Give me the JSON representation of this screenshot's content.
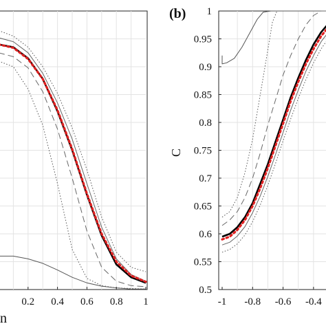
{
  "panels": [
    {
      "panel_label": "",
      "chart_data": {
        "type": "line",
        "xlabel": "n",
        "ylabel": "",
        "xlim": [
          0,
          1
        ],
        "ylim": [
          0.5,
          1
        ],
        "x_ticks": [
          "0.2",
          "0.4",
          "0.6",
          "0.8",
          "1"
        ],
        "grid": true,
        "series": [
          {
            "style": "dotted-upper",
            "color": "#555555",
            "points": [
              [
                0,
                0.965
              ],
              [
                0.1,
                0.955
              ],
              [
                0.2,
                0.935
              ],
              [
                0.3,
                0.9
              ],
              [
                0.4,
                0.852
              ],
              [
                0.5,
                0.79
              ],
              [
                0.6,
                0.715
              ],
              [
                0.7,
                0.63
              ],
              [
                0.8,
                0.567
              ],
              [
                0.9,
                0.54
              ],
              [
                1,
                0.532
              ]
            ]
          },
          {
            "style": "thin-solid",
            "color": "#666666",
            "points": [
              [
                0,
                0.952
              ],
              [
                0.1,
                0.945
              ],
              [
                0.2,
                0.925
              ],
              [
                0.3,
                0.888
              ],
              [
                0.4,
                0.835
              ],
              [
                0.5,
                0.77
              ],
              [
                0.6,
                0.69
              ],
              [
                0.7,
                0.612
              ],
              [
                0.8,
                0.555
              ],
              [
                0.9,
                0.527
              ],
              [
                1,
                0.515
              ]
            ]
          },
          {
            "style": "bold-black",
            "color": "#000000",
            "points": [
              [
                0,
                0.94
              ],
              [
                0.1,
                0.935
              ],
              [
                0.2,
                0.915
              ],
              [
                0.3,
                0.878
              ],
              [
                0.4,
                0.82
              ],
              [
                0.5,
                0.75
              ],
              [
                0.6,
                0.67
              ],
              [
                0.7,
                0.597
              ],
              [
                0.8,
                0.545
              ],
              [
                0.9,
                0.522
              ],
              [
                1,
                0.512
              ]
            ]
          },
          {
            "style": "red-dotted",
            "color": "#e02020",
            "points": [
              [
                0,
                0.94
              ],
              [
                0.1,
                0.934
              ],
              [
                0.2,
                0.914
              ],
              [
                0.3,
                0.878
              ],
              [
                0.4,
                0.822
              ],
              [
                0.5,
                0.752
              ],
              [
                0.6,
                0.672
              ],
              [
                0.7,
                0.6
              ],
              [
                0.8,
                0.55
              ],
              [
                0.9,
                0.525
              ],
              [
                1,
                0.514
              ]
            ]
          },
          {
            "style": "dashed",
            "color": "#666666",
            "points": [
              [
                0,
                0.925
              ],
              [
                0.1,
                0.918
              ],
              [
                0.2,
                0.898
              ],
              [
                0.3,
                0.855
              ],
              [
                0.4,
                0.788
              ],
              [
                0.5,
                0.7
              ],
              [
                0.6,
                0.605
              ],
              [
                0.7,
                0.54
              ],
              [
                0.8,
                0.515
              ],
              [
                0.9,
                0.507
              ],
              [
                1,
                0.505
              ]
            ]
          },
          {
            "style": "dotted-lower",
            "color": "#555555",
            "points": [
              [
                0,
                0.91
              ],
              [
                0.1,
                0.9
              ],
              [
                0.2,
                0.86
              ],
              [
                0.3,
                0.795
              ],
              [
                0.4,
                0.69
              ],
              [
                0.5,
                0.572
              ],
              [
                0.6,
                0.52
              ],
              [
                0.7,
                0.507
              ],
              [
                0.8,
                0.503
              ],
              [
                0.9,
                0.502
              ],
              [
                1,
                0.501
              ]
            ]
          },
          {
            "style": "bottom-solid",
            "color": "#555555",
            "points": [
              [
                0,
                0.56
              ],
              [
                0.1,
                0.56
              ],
              [
                0.2,
                0.555
              ],
              [
                0.3,
                0.547
              ],
              [
                0.4,
                0.535
              ],
              [
                0.5,
                0.522
              ],
              [
                0.6,
                0.512
              ],
              [
                0.7,
                0.506
              ],
              [
                0.8,
                0.503
              ],
              [
                0.9,
                0.501
              ],
              [
                1,
                0.501
              ]
            ]
          }
        ]
      }
    },
    {
      "panel_label": "(b)",
      "chart_data": {
        "type": "line",
        "xlabel": "",
        "ylabel": "C",
        "xlim": [
          -1,
          -0.3
        ],
        "ylim": [
          0.5,
          1
        ],
        "x_ticks": [
          "-1",
          "-0.8",
          "-0.6",
          "-0.4"
        ],
        "y_ticks": [
          "0.5",
          "0.55",
          "0.6",
          "0.65",
          "0.7",
          "0.75",
          "0.8",
          "0.85",
          "0.9",
          "0.95",
          "1"
        ],
        "grid": true,
        "series": [
          {
            "style": "top-solid",
            "color": "#555555",
            "points": [
              [
                -1,
                0.92
              ],
              [
                -1,
                0.905
              ],
              [
                -0.97,
                0.907
              ],
              [
                -0.92,
                0.915
              ],
              [
                -0.87,
                0.935
              ],
              [
                -0.82,
                0.96
              ],
              [
                -0.77,
                0.985
              ],
              [
                -0.73,
                0.998
              ],
              [
                -0.68,
                1.0
              ],
              [
                -0.6,
                1.0
              ],
              [
                -0.5,
                1.0
              ],
              [
                -0.4,
                1.0
              ],
              [
                -0.3,
                1.0
              ]
            ]
          },
          {
            "style": "dotted-upper",
            "color": "#555555",
            "points": [
              [
                -1,
                0.63
              ],
              [
                -0.95,
                0.64
              ],
              [
                -0.9,
                0.665
              ],
              [
                -0.85,
                0.71
              ],
              [
                -0.8,
                0.77
              ],
              [
                -0.75,
                0.85
              ],
              [
                -0.7,
                0.93
              ],
              [
                -0.67,
                0.98
              ],
              [
                -0.64,
                1.0
              ],
              [
                -0.5,
                1.0
              ],
              [
                -0.3,
                1.0
              ]
            ]
          },
          {
            "style": "dashed",
            "color": "#666666",
            "points": [
              [
                -1,
                0.615
              ],
              [
                -0.95,
                0.625
              ],
              [
                -0.9,
                0.64
              ],
              [
                -0.85,
                0.665
              ],
              [
                -0.8,
                0.7
              ],
              [
                -0.75,
                0.745
              ],
              [
                -0.7,
                0.795
              ],
              [
                -0.65,
                0.84
              ],
              [
                -0.6,
                0.885
              ],
              [
                -0.55,
                0.92
              ],
              [
                -0.5,
                0.95
              ],
              [
                -0.45,
                0.975
              ],
              [
                -0.4,
                0.992
              ],
              [
                -0.35,
                1.0
              ],
              [
                -0.3,
                1.0
              ]
            ]
          },
          {
            "style": "bold-black",
            "color": "#000000",
            "points": [
              [
                -1,
                0.595
              ],
              [
                -0.95,
                0.6
              ],
              [
                -0.9,
                0.612
              ],
              [
                -0.85,
                0.63
              ],
              [
                -0.8,
                0.655
              ],
              [
                -0.75,
                0.69
              ],
              [
                -0.7,
                0.725
              ],
              [
                -0.65,
                0.765
              ],
              [
                -0.6,
                0.805
              ],
              [
                -0.55,
                0.845
              ],
              [
                -0.5,
                0.88
              ],
              [
                -0.45,
                0.912
              ],
              [
                -0.4,
                0.94
              ],
              [
                -0.35,
                0.962
              ],
              [
                -0.3,
                0.978
              ]
            ]
          },
          {
            "style": "red-dotted",
            "color": "#e02020",
            "points": [
              [
                -1,
                0.59
              ],
              [
                -0.95,
                0.595
              ],
              [
                -0.9,
                0.607
              ],
              [
                -0.85,
                0.625
              ],
              [
                -0.8,
                0.65
              ],
              [
                -0.75,
                0.682
              ],
              [
                -0.7,
                0.718
              ],
              [
                -0.65,
                0.758
              ],
              [
                -0.6,
                0.798
              ],
              [
                -0.55,
                0.838
              ],
              [
                -0.5,
                0.873
              ],
              [
                -0.45,
                0.905
              ],
              [
                -0.4,
                0.932
              ],
              [
                -0.35,
                0.955
              ],
              [
                -0.3,
                0.972
              ]
            ]
          },
          {
            "style": "thin-solid",
            "color": "#666666",
            "points": [
              [
                -1,
                0.58
              ],
              [
                -0.95,
                0.585
              ],
              [
                -0.9,
                0.596
              ],
              [
                -0.85,
                0.613
              ],
              [
                -0.8,
                0.638
              ],
              [
                -0.75,
                0.668
              ],
              [
                -0.7,
                0.703
              ],
              [
                -0.65,
                0.742
              ],
              [
                -0.6,
                0.782
              ],
              [
                -0.55,
                0.822
              ],
              [
                -0.5,
                0.858
              ],
              [
                -0.45,
                0.892
              ],
              [
                -0.4,
                0.92
              ],
              [
                -0.35,
                0.945
              ],
              [
                -0.3,
                0.963
              ]
            ]
          },
          {
            "style": "dotted-lower",
            "color": "#555555",
            "points": [
              [
                -1,
                0.567
              ],
              [
                -0.95,
                0.572
              ],
              [
                -0.9,
                0.582
              ],
              [
                -0.85,
                0.598
              ],
              [
                -0.8,
                0.622
              ],
              [
                -0.75,
                0.652
              ],
              [
                -0.7,
                0.687
              ],
              [
                -0.65,
                0.726
              ],
              [
                -0.6,
                0.767
              ],
              [
                -0.55,
                0.806
              ],
              [
                -0.5,
                0.843
              ],
              [
                -0.45,
                0.877
              ],
              [
                -0.4,
                0.907
              ],
              [
                -0.35,
                0.932
              ],
              [
                -0.3,
                0.952
              ]
            ]
          }
        ]
      }
    }
  ]
}
